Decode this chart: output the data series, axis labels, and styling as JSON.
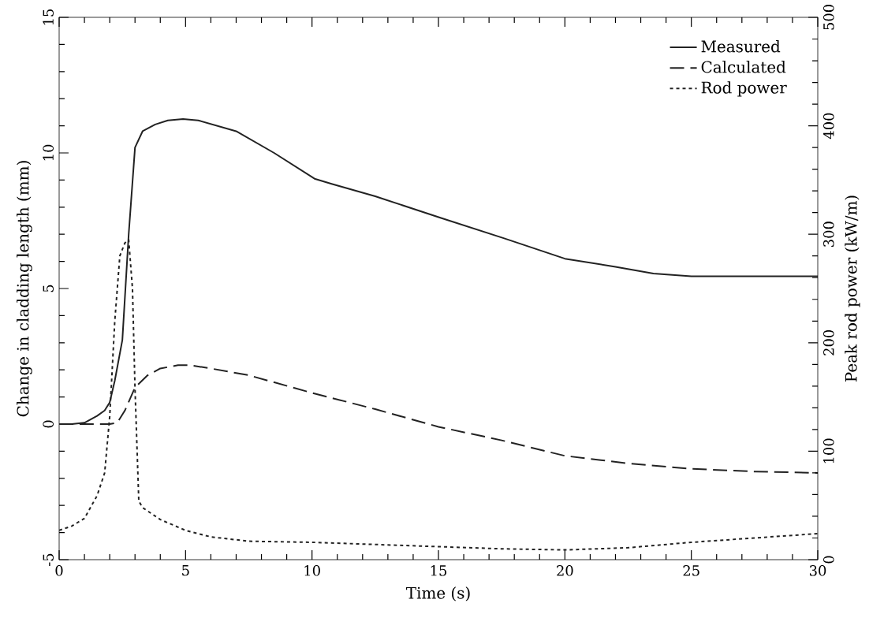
{
  "chart_data": {
    "type": "line",
    "xlabel": "Time (s)",
    "ylabel": "Change in cladding length (mm)",
    "y2label": "Peak rod power (kW/m)",
    "xlim": [
      0,
      30
    ],
    "xticks": [
      0,
      5,
      10,
      15,
      20,
      25,
      30
    ],
    "ylim": [
      -5,
      15
    ],
    "yticks": [
      -5,
      0,
      5,
      10,
      15
    ],
    "y2lim": [
      0,
      500
    ],
    "y2ticks": [
      0,
      100,
      200,
      300,
      400,
      500
    ],
    "legend": "top right",
    "grid": false,
    "marker": "none",
    "series": [
      {
        "name": "Measured",
        "color": "#222222",
        "line_style": "solid",
        "x": [
          0,
          0.5,
          1,
          1.5,
          1.8,
          2,
          2.2,
          2.5,
          2.75,
          3,
          3.3,
          3.8,
          4.3,
          4.9,
          5.5,
          7,
          8.5,
          10.1,
          10.8,
          12.5,
          15.1,
          17.6,
          20,
          22,
          23.5,
          25,
          30
        ],
        "values": [
          0,
          0,
          0.05,
          0.3,
          0.5,
          0.8,
          1.6,
          3.1,
          7,
          10.2,
          10.8,
          11.05,
          11.2,
          11.25,
          11.2,
          10.8,
          10.0,
          9.05,
          8.85,
          8.4,
          7.6,
          6.85,
          6.1,
          5.8,
          5.55,
          5.45,
          5.45
        ]
      },
      {
        "name": "Calculated",
        "color": "#222222",
        "line_style": "dashed",
        "x": [
          0,
          1,
          2,
          2.3,
          2.6,
          3,
          3.5,
          4,
          4.7,
          5.2,
          6,
          7.5,
          10,
          12.5,
          15,
          17.5,
          20,
          22.5,
          25,
          27.5,
          30
        ],
        "values": [
          0,
          0,
          0,
          0.05,
          0.5,
          1.35,
          1.8,
          2.05,
          2.17,
          2.17,
          2.05,
          1.8,
          1.15,
          0.55,
          -0.1,
          -0.6,
          -1.17,
          -1.45,
          -1.65,
          -1.75,
          -1.8
        ],
        "axis": "y"
      },
      {
        "name": "Rod power",
        "color": "#222222",
        "line_style": "dotted",
        "axis": "y2",
        "x": [
          0,
          0.5,
          1,
          1.5,
          1.8,
          1.9,
          2,
          2.2,
          2.4,
          2.6,
          2.75,
          2.9,
          3,
          3.15,
          3.3,
          4,
          5,
          6,
          7.5,
          10,
          12.5,
          15,
          17.5,
          20,
          22.5,
          25,
          27.5,
          30
        ],
        "values": [
          27,
          31,
          38,
          59,
          80,
          106,
          132,
          220,
          280,
          292,
          295,
          250,
          158,
          54,
          48,
          37,
          27,
          21,
          17,
          16,
          14,
          12,
          10,
          9,
          11,
          16,
          20,
          24
        ]
      }
    ]
  }
}
